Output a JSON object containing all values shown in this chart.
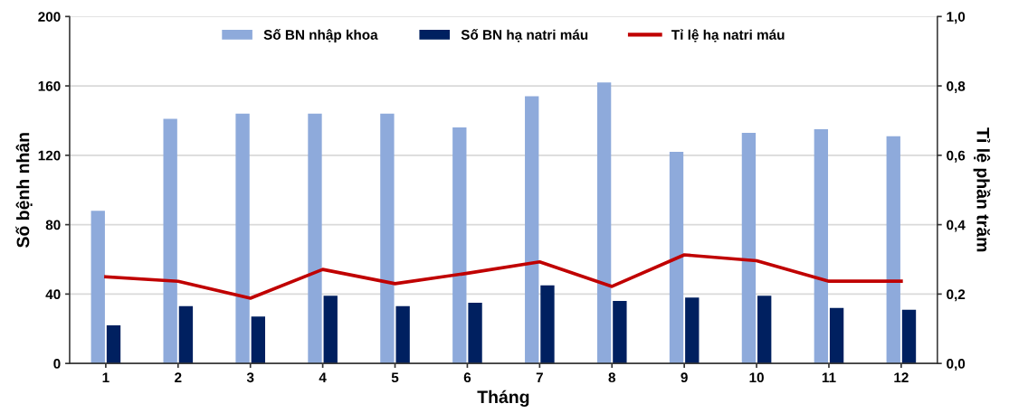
{
  "chart_data": {
    "type": "bar",
    "xlabel": "Tháng",
    "ylabel": "Số bệnh nhân",
    "y2label": "Tỉ lệ phần trăm",
    "categories": [
      "1",
      "2",
      "3",
      "4",
      "5",
      "6",
      "7",
      "8",
      "9",
      "10",
      "11",
      "12"
    ],
    "series": [
      {
        "name": "Số BN nhập khoa",
        "color": "#8eaadb",
        "values": [
          88,
          141,
          144,
          144,
          144,
          136,
          154,
          162,
          122,
          133,
          135,
          131
        ]
      },
      {
        "name": "Số BN hạ natri máu",
        "color": "#002060",
        "values": [
          22,
          33,
          27,
          39,
          33,
          35,
          45,
          36,
          38,
          39,
          32,
          31
        ]
      },
      {
        "name": "Tỉ lệ hạ natri máu",
        "color": "#c00000",
        "type": "line",
        "axis": "y2",
        "values": [
          0.25,
          0.237,
          0.188,
          0.271,
          0.23,
          0.26,
          0.293,
          0.222,
          0.313,
          0.296,
          0.237,
          0.237
        ]
      }
    ],
    "ylim": [
      0,
      200
    ],
    "yticks": [
      0,
      40,
      80,
      120,
      160,
      200
    ],
    "y2lim": [
      0,
      1
    ],
    "y2ticks": [
      {
        "value": 0,
        "label": "0,0"
      },
      {
        "value": 0.2,
        "label": "0,2"
      },
      {
        "value": 0.4,
        "label": "0,4"
      },
      {
        "value": 0.6,
        "label": "0,6"
      },
      {
        "value": 0.8,
        "label": "0,8"
      },
      {
        "value": 1,
        "label": "1,0"
      }
    ],
    "grid": "y",
    "legend": "top",
    "marker": "none",
    "line_style": "solid"
  }
}
